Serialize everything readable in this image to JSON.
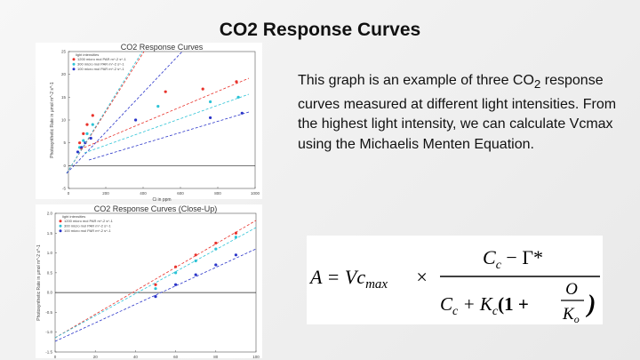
{
  "title": "CO2 Response Curves",
  "figures": [
    {
      "type": "scatter",
      "title": "CO2 Response Curves",
      "x_label": "Ci in ppm",
      "y_label": "Photosynthetic Rate in µmol m^-2 s^-1",
      "legend_title": "light intensities",
      "xlim": [
        0,
        1000
      ],
      "ylim": [
        -5,
        25
      ],
      "xticks": [
        0,
        200,
        400,
        600,
        800,
        1000
      ],
      "yticks": [
        -5,
        0,
        5,
        10,
        15,
        20,
        25
      ],
      "series": [
        {
          "name": "1200 micro mol PAR m^-2 s^-1",
          "color": "#e8322b",
          "x": [
            60,
            80,
            100,
            130,
            520,
            720,
            900
          ],
          "y": [
            5,
            7,
            9,
            11,
            16.2,
            16.8,
            18.4
          ]
        },
        {
          "name": "300 micro mol PAR m^-2 s^-1",
          "color": "#2cc3d6",
          "x": [
            60,
            80,
            100,
            130,
            480,
            760,
            910
          ],
          "y": [
            4,
            5.5,
            7,
            9,
            13,
            14,
            15
          ]
        },
        {
          "name": "100 micro mol PAR m^-2 s^-1",
          "color": "#2a35c9",
          "x": [
            50,
            70,
            90,
            120,
            360,
            760,
            930
          ],
          "y": [
            3,
            4,
            5,
            6,
            10,
            10.5,
            11.5
          ]
        }
      ]
    },
    {
      "type": "scatter",
      "title": "CO2 Response Curves (Close-Up)",
      "x_label": "Ci in ppm",
      "y_label": "Photosynthetic Rate in µmol m^-2 s^-1",
      "legend_title": "light intensities",
      "xlim": [
        0,
        100
      ],
      "ylim": [
        -1.5,
        2.0
      ],
      "xticks": [
        0,
        20,
        40,
        60,
        80,
        100
      ],
      "yticks": [
        -1.5,
        {
          "value": -1,
          "label": "-1.0"
        },
        -0.5,
        {
          "value": 0,
          "label": "0.0"
        },
        0.5,
        {
          "value": 1,
          "label": "1.0"
        },
        1.5,
        {
          "value": 2,
          "label": "2.0"
        }
      ],
      "series": [
        {
          "name": "1200 micro mol PAR m^-2 s^-1",
          "color": "#e8322b",
          "x": [
            50,
            60,
            70,
            80,
            90
          ],
          "y": [
            0.2,
            0.65,
            0.95,
            1.25,
            1.5
          ]
        },
        {
          "name": "300 micro mol PAR m^-2 s^-1",
          "color": "#2cc3d6",
          "x": [
            50,
            60,
            70,
            80,
            90
          ],
          "y": [
            0.1,
            0.5,
            0.8,
            1.1,
            1.4
          ]
        },
        {
          "name": "100 micro mol PAR m^-2 s^-1",
          "color": "#2a35c9",
          "x": [
            50,
            60,
            70,
            80,
            90
          ],
          "y": [
            -0.1,
            0.2,
            0.45,
            0.7,
            0.95
          ]
        }
      ]
    }
  ],
  "description": {
    "before": "This graph is an example of three CO",
    "subscript": "2",
    "after": " response curves measured at different light intensities.  From the highest light intensity, we can calculate Vcmax using the Michaelis Menten Equation."
  },
  "equation": {
    "lhs": "A = Vc",
    "lhs_sub": "max",
    "times": "×",
    "num": "C",
    "num_sub": "c",
    "num_rest": " − Γ*",
    "den": "C",
    "den_sub": "c",
    "den_plus": " + K",
    "den_k_sub": "c",
    "paren_open": "(1 +",
    "inner_num": "O",
    "inner_den": "K",
    "inner_den_sub": "o",
    "paren_close": ")"
  }
}
